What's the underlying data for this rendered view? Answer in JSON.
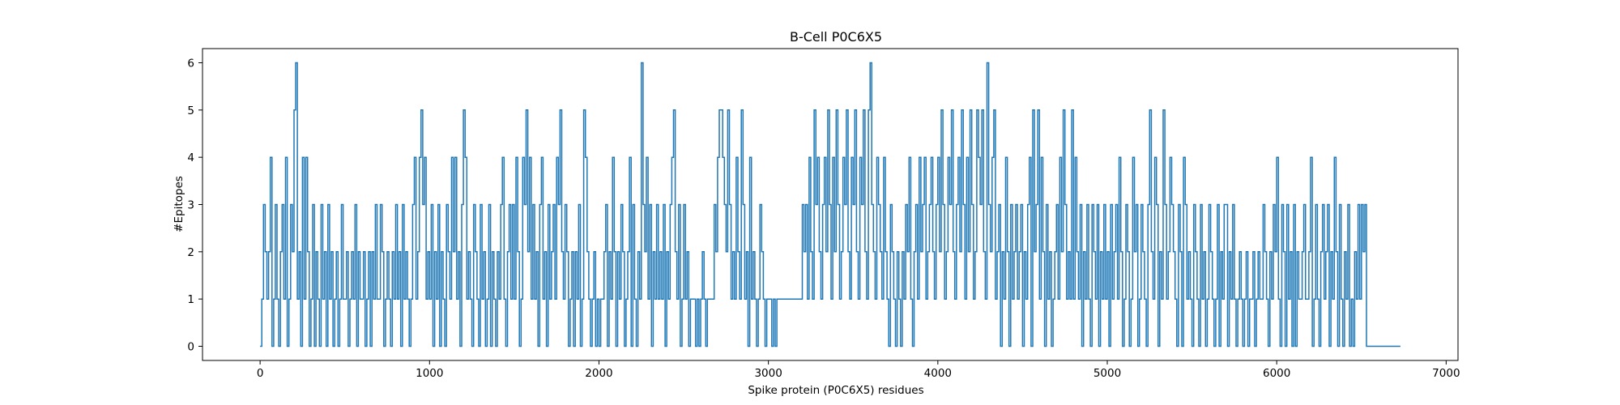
{
  "chart_data": {
    "type": "line",
    "title": "B-Cell P0C6X5",
    "xlabel": "Spike protein (P0C6X5) residues",
    "ylabel": "#Epitopes",
    "xlim": [
      -340,
      7070
    ],
    "ylim": [
      -0.3,
      6.3
    ],
    "xticks": [
      0,
      1000,
      2000,
      3000,
      4000,
      5000,
      6000,
      7000
    ],
    "yticks": [
      0,
      1,
      2,
      3,
      4,
      5,
      6
    ],
    "grid": false,
    "color": "#1f77b4",
    "x_start": 0,
    "x_end": 6730,
    "sample_step": 10,
    "values": [
      0,
      1,
      3,
      2,
      1,
      2,
      4,
      0,
      1,
      3,
      1,
      0,
      2,
      3,
      1,
      4,
      0,
      1,
      3,
      2,
      5,
      6,
      1,
      2,
      0,
      4,
      1,
      4,
      2,
      0,
      1,
      3,
      0,
      2,
      1,
      0,
      3,
      1,
      2,
      0,
      3,
      1,
      2,
      0,
      1,
      2,
      0,
      1,
      3,
      1,
      1,
      2,
      0,
      1,
      2,
      1,
      3,
      0,
      2,
      1,
      1,
      2,
      0,
      1,
      2,
      0,
      2,
      1,
      3,
      1,
      1,
      3,
      2,
      0,
      1,
      2,
      1,
      0,
      2,
      1,
      3,
      1,
      2,
      0,
      3,
      1,
      2,
      1,
      0,
      1,
      3,
      4,
      1,
      2,
      4,
      5,
      3,
      4,
      1,
      2,
      1,
      3,
      0,
      2,
      1,
      3,
      0,
      2,
      1,
      0,
      3,
      2,
      1,
      4,
      2,
      4,
      1,
      2,
      0,
      3,
      5,
      4,
      1,
      2,
      1,
      0,
      3,
      2,
      1,
      0,
      3,
      1,
      2,
      0,
      1,
      3,
      0,
      2,
      1,
      0,
      2,
      1,
      3,
      4,
      1,
      0,
      2,
      3,
      1,
      3,
      1,
      4,
      2,
      0,
      1,
      4,
      3,
      5,
      2,
      4,
      1,
      3,
      1,
      2,
      0,
      3,
      4,
      1,
      2,
      0,
      3,
      1,
      2,
      3,
      1,
      4,
      3,
      5,
      2,
      1,
      3,
      2,
      0,
      1,
      2,
      0,
      2,
      1,
      3,
      0,
      1,
      5,
      4,
      2,
      1,
      0,
      1,
      2,
      0,
      1,
      0,
      1,
      1,
      2,
      3,
      0,
      2,
      1,
      4,
      2,
      0,
      2,
      1,
      3,
      2,
      0,
      1,
      2,
      4,
      0,
      3,
      1,
      0,
      2,
      1,
      6,
      3,
      2,
      4,
      1,
      3,
      0,
      2,
      1,
      3,
      1,
      2,
      1,
      3,
      0,
      2,
      1,
      3,
      4,
      5,
      2,
      1,
      3,
      0,
      1,
      3,
      1,
      2,
      0,
      1,
      1,
      1,
      0,
      1,
      0,
      1,
      2,
      1,
      0,
      1,
      1,
      1,
      1,
      3,
      2,
      4,
      5,
      5,
      4,
      3,
      2,
      5,
      3,
      1,
      2,
      1,
      4,
      2,
      1,
      5,
      3,
      1,
      2,
      0,
      4,
      1,
      2,
      1,
      0,
      1,
      3,
      2,
      1,
      0,
      1,
      1,
      1,
      0,
      1,
      0,
      1,
      1,
      1,
      1,
      1,
      1,
      1,
      1,
      1,
      1,
      1,
      1,
      1,
      1,
      1,
      3,
      2,
      3,
      1,
      4,
      2,
      1,
      5,
      3,
      4,
      2,
      1,
      3,
      4,
      2,
      5,
      3,
      1,
      4,
      2,
      5,
      3,
      1,
      2,
      4,
      3,
      5,
      2,
      1,
      4,
      3,
      5,
      2,
      1,
      4,
      3,
      5,
      2,
      1,
      5,
      6,
      3,
      2,
      1,
      4,
      3,
      2,
      1,
      4,
      2,
      1,
      0,
      3,
      2,
      1,
      0,
      2,
      1,
      0,
      2,
      1,
      3,
      2,
      4,
      1,
      0,
      2,
      3,
      1,
      4,
      2,
      3,
      4,
      1,
      2,
      3,
      4,
      2,
      1,
      3,
      4,
      2,
      5,
      3,
      1,
      2,
      4,
      3,
      5,
      2,
      1,
      3,
      4,
      2,
      5,
      3,
      1,
      4,
      2,
      5,
      3,
      1,
      2,
      5,
      4,
      3,
      5,
      2,
      1,
      6,
      3,
      2,
      4,
      5,
      1,
      2,
      3,
      0,
      2,
      1,
      4,
      2,
      0,
      3,
      1,
      2,
      3,
      1,
      2,
      3,
      0,
      2,
      1,
      3,
      4,
      0,
      5,
      2,
      3,
      5,
      1,
      4,
      2,
      0,
      3,
      1,
      2,
      0,
      1,
      2,
      3,
      1,
      4,
      2,
      5,
      3,
      1,
      2,
      1,
      5,
      1,
      4,
      2,
      1,
      3,
      0,
      2,
      1,
      3,
      1,
      0,
      3,
      2,
      1,
      3,
      0,
      2,
      1,
      3,
      1,
      2,
      0,
      3,
      1,
      2,
      3,
      1,
      4,
      2,
      0,
      1,
      3,
      2,
      0,
      1,
      4,
      2,
      3,
      0,
      1,
      3,
      2,
      1,
      0,
      3,
      5,
      2,
      1,
      4,
      3,
      0,
      2,
      1,
      5,
      3,
      1,
      2,
      4,
      3,
      2,
      1,
      0,
      3,
      2,
      0,
      4,
      3,
      1,
      2,
      1,
      0,
      3,
      2,
      1,
      0,
      3,
      1,
      2,
      0,
      1,
      3,
      2,
      1,
      0,
      1,
      3,
      0,
      2,
      1,
      3,
      3,
      0,
      2,
      1,
      3,
      1,
      0,
      1,
      2,
      1,
      0,
      1,
      2,
      0,
      1,
      1,
      2,
      0,
      1,
      2,
      1,
      1,
      3,
      2,
      1,
      0,
      2,
      1,
      3,
      2,
      4,
      1,
      0,
      3,
      2,
      0,
      3,
      1,
      2,
      0,
      3,
      0,
      2,
      1,
      1,
      2,
      3,
      1,
      1,
      2,
      4,
      0,
      1,
      3,
      1,
      0,
      2,
      3,
      1,
      2,
      3,
      0,
      2,
      1,
      4,
      2,
      0,
      3,
      1,
      0,
      2,
      1,
      3,
      0,
      1,
      0,
      2,
      1,
      3,
      1,
      3,
      2,
      3,
      0
    ]
  }
}
